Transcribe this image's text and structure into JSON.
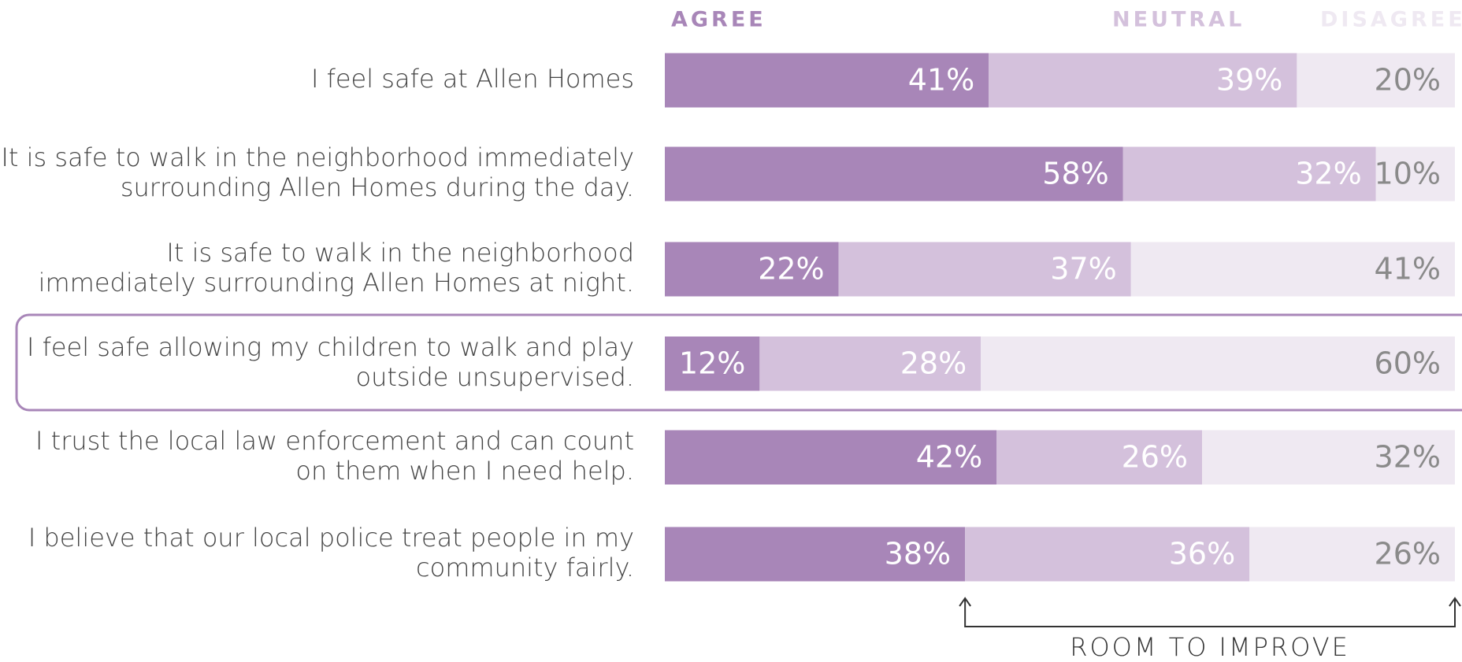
{
  "chart_data": {
    "type": "stacked_bar_horizontal",
    "categories": [
      [
        "I feel safe at Allen Homes"
      ],
      [
        "It is safe to walk in the neighborhood immediately",
        "surrounding Allen Homes during the day."
      ],
      [
        "It is safe to walk in the neighborhood",
        "immediately surrounding Allen Homes at night."
      ],
      [
        "I feel safe allowing my children to walk and play",
        "outside unsupervised."
      ],
      [
        "I trust the local law enforcement and can count",
        "on them when I need help."
      ],
      [
        "I believe that our local police treat people in my",
        "community fairly."
      ]
    ],
    "series": [
      {
        "name": "AGREE",
        "color": "#a886b8",
        "values": [
          41,
          58,
          22,
          12,
          42,
          38
        ],
        "value_labels": [
          "41%",
          "58%",
          "22%",
          "12%",
          "42%",
          "38%"
        ]
      },
      {
        "name": "NEUTRAL",
        "color": "#d4c1dc",
        "values": [
          39,
          32,
          37,
          28,
          26,
          36
        ],
        "value_labels": [
          "39%",
          "32%",
          "37%",
          "28%",
          "26%",
          "36%"
        ]
      },
      {
        "name": "DISAGREE",
        "color": "#efe9f2",
        "values": [
          20,
          10,
          41,
          60,
          32,
          26
        ],
        "value_labels": [
          "20%",
          "10%",
          "41%",
          "60%",
          "32%",
          "26%"
        ]
      }
    ],
    "xlim": [
      0,
      100
    ],
    "annotation": "ROOM TO IMPROVE"
  }
}
